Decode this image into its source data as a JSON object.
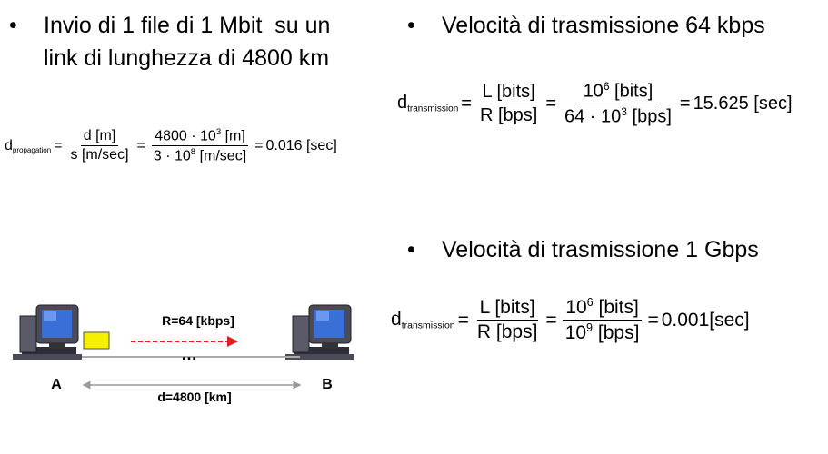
{
  "bullets": {
    "left": {
      "dot": "•",
      "line1": "Invio di 1 file di 1 Mbit  su un",
      "line2": "link di lunghezza di 4800 km"
    },
    "right_top": {
      "dot": "•",
      "text": "Velocità di trasmissione 64 kbps"
    },
    "right_bottom": {
      "dot": "•",
      "text": "Velocità di trasmissione 1 Gbps"
    }
  },
  "formula_propagation": {
    "d": "d",
    "sub": "propagation",
    "eq": "=",
    "f1_num": "d [m]",
    "f1_den": "s [m/sec]",
    "f2_num": "4800 · 10",
    "f2_num_exp": "3",
    "f2_num_unit": " [m]",
    "f2_den": "3 · 10",
    "f2_den_exp": "8",
    "f2_den_unit": " [m/sec]",
    "result": "0.016 [sec]"
  },
  "formula_64k": {
    "d": "d",
    "sub": "transmission",
    "eq": "=",
    "f1_num": "L [bits]",
    "f1_den": "R [bps]",
    "f2_num_base": "10",
    "f2_num_exp": "6",
    "f2_num_unit": " [bits]",
    "f2_den_base": "64 · 10",
    "f2_den_exp": "3",
    "f2_den_unit": " [bps]",
    "result": "15.625 [sec]"
  },
  "formula_1g": {
    "d": "d",
    "sub": "transmission",
    "eq": "=",
    "f1_num": "L [bits]",
    "f1_den": "R [bps]",
    "f2_num_base": "10",
    "f2_num_exp": "6",
    "f2_num_unit": " [bits]",
    "f2_den_base": "10",
    "f2_den_exp": "9",
    "f2_den_unit": " [bps]",
    "result": "0.001[sec]"
  },
  "diagram": {
    "rate_label": "R=64 [kbps]",
    "dots": "…",
    "node_a": "A",
    "node_b": "B",
    "distance_label": "d=4800 [km]",
    "colors": {
      "packet": "#f5f000",
      "arrow": "#e02020",
      "screen": "#3a6fd8"
    }
  }
}
